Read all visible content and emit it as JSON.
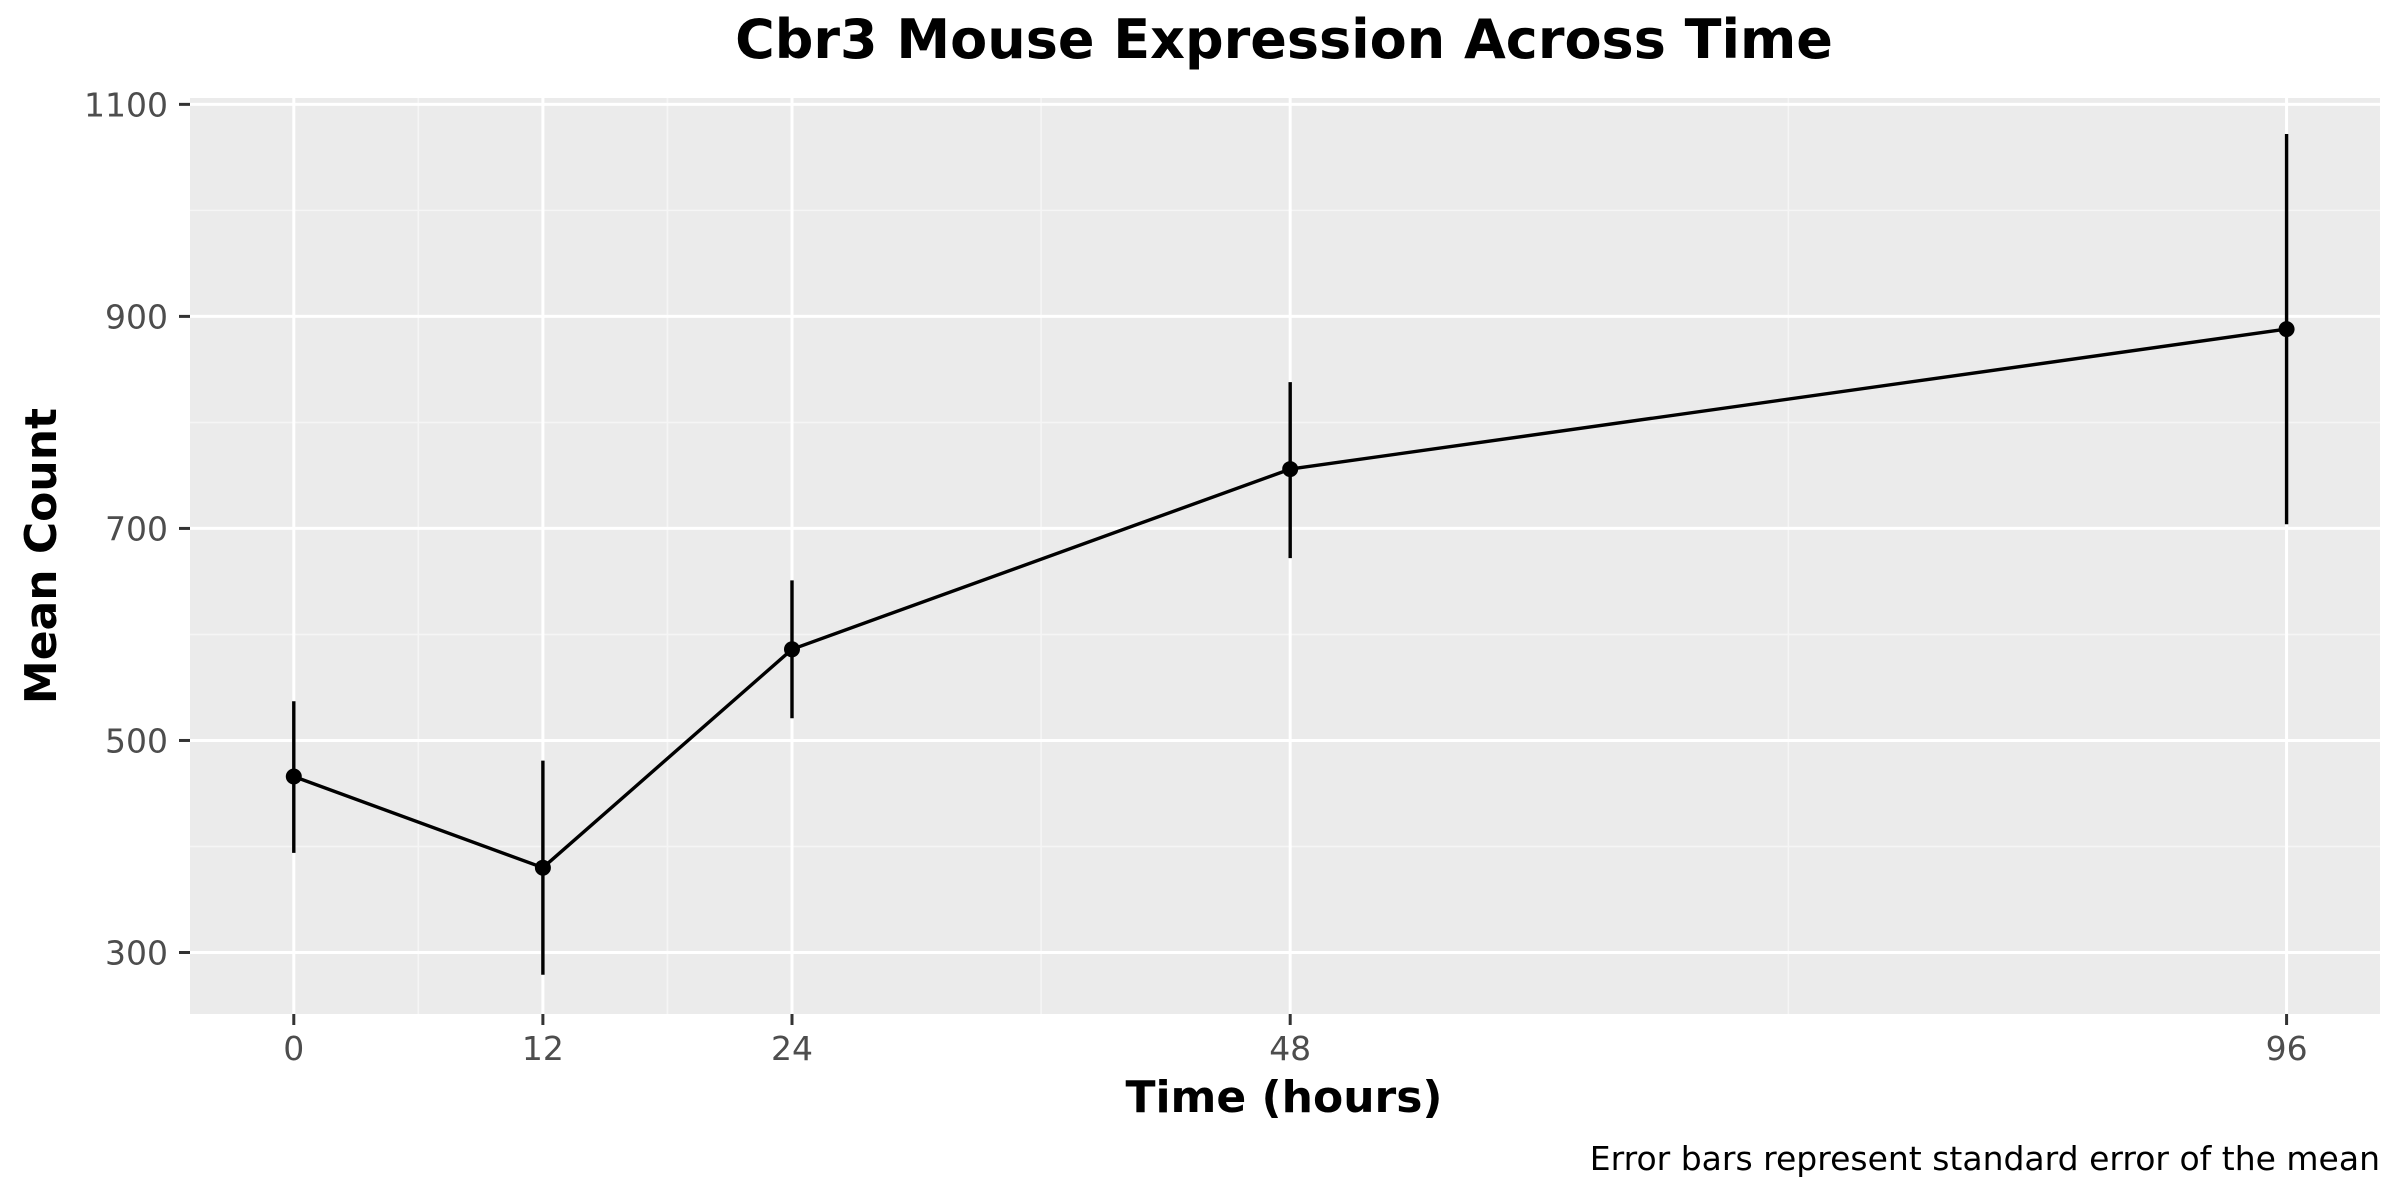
{
  "chart_data": {
    "type": "line",
    "title": "Cbr3 Mouse Expression Across Time",
    "xlabel": "Time (hours)",
    "ylabel": "Mean Count",
    "caption": "Error bars represent standard error of the mean",
    "x": [
      0,
      12,
      24,
      48,
      96
    ],
    "xlim": [
      -5,
      100.5
    ],
    "ylim": [
      242,
      1106
    ],
    "x_ticks": [
      0,
      12,
      24,
      48,
      96
    ],
    "x_minor_ticks": [
      6,
      18,
      36,
      72
    ],
    "y_ticks": [
      300,
      500,
      700,
      900,
      1100
    ],
    "y_minor_ticks": [
      400,
      600,
      800,
      1000
    ],
    "grid": true,
    "series": [
      {
        "values": [
          466,
          380,
          586,
          756,
          888
        ],
        "error_low": [
          394,
          279,
          521,
          672,
          704
        ],
        "error_high": [
          537,
          481,
          651,
          838,
          1072
        ]
      }
    ],
    "colors": {
      "panel": "#ebebeb",
      "grid_major": "#ffffff",
      "grid_minor": "#f5f5f5",
      "line": "#000000",
      "point": "#000000",
      "tick_label": "#4d4d4d",
      "tick_mark": "#333333"
    }
  }
}
